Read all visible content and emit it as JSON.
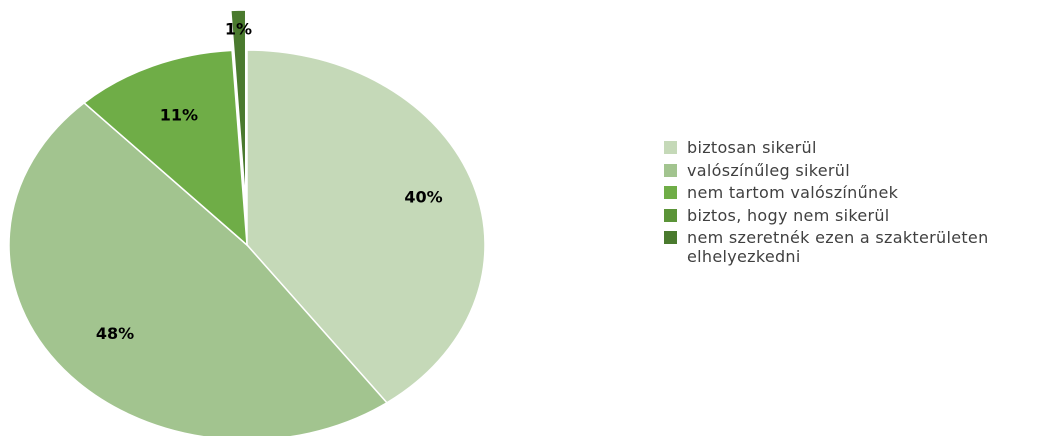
{
  "chart_data": {
    "type": "pie",
    "title": "",
    "slices": [
      {
        "label": "biztosan sikerül",
        "value": 40,
        "value_label": "40%",
        "color": "#c5d9b8"
      },
      {
        "label": "valószínűleg sikerül",
        "value": 48,
        "value_label": "48%",
        "color": "#a2c48f"
      },
      {
        "label": "nem tartom valószínűnek",
        "value": 11,
        "value_label": "11%",
        "color": "#6fad47"
      },
      {
        "label": "biztos, hogy nem sikerül",
        "value": 0,
        "value_label": "",
        "color": "#5b9438"
      },
      {
        "label": "nem szeretnék ezen a szakterületen elhelyezkedni",
        "value": 1,
        "value_label": "1%",
        "color": "#4a7a2e"
      }
    ],
    "legend_position": "right"
  }
}
